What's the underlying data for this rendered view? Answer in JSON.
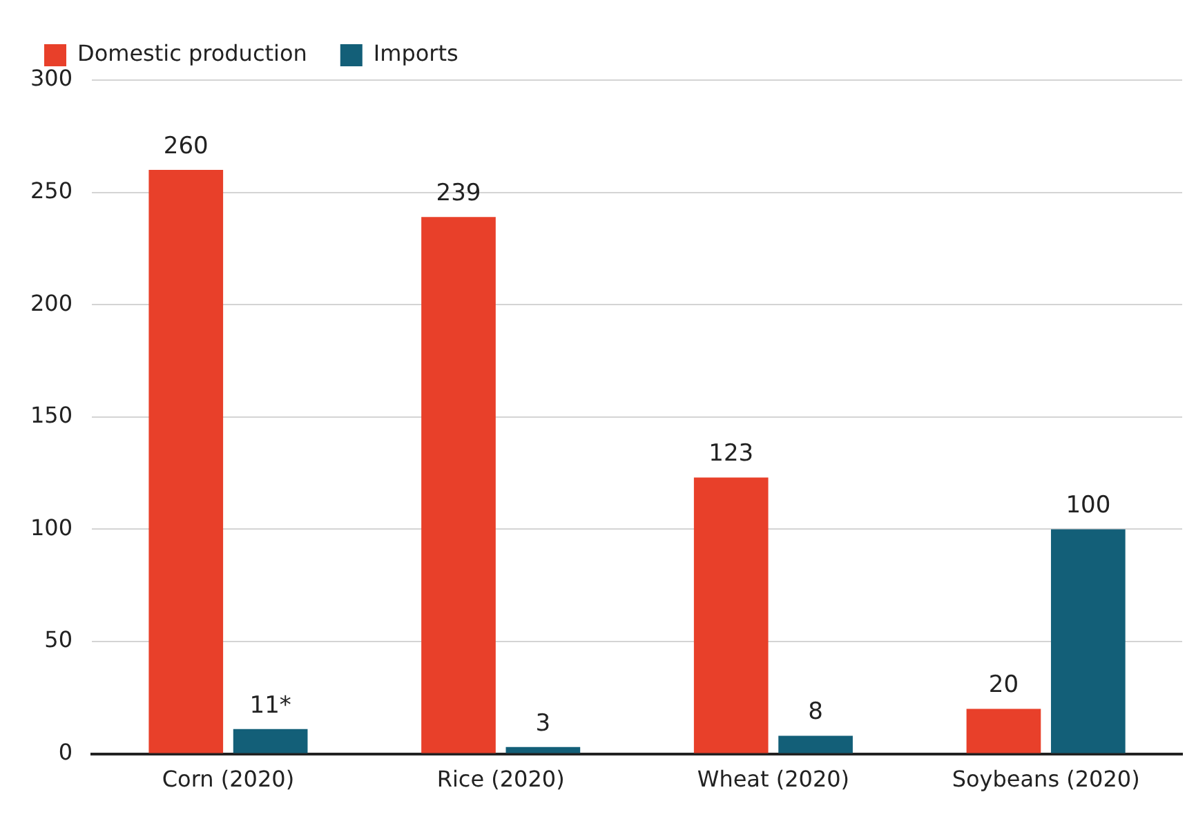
{
  "chart_data": {
    "type": "bar",
    "categories": [
      "Corn (2020)",
      "Rice (2020)",
      "Wheat (2020)",
      "Soybeans (2020)"
    ],
    "series": [
      {
        "name": "Domestic production",
        "color": "#e8402a",
        "values": [
          260,
          239,
          123,
          20
        ],
        "value_labels": [
          "260",
          "239",
          "123",
          "20"
        ]
      },
      {
        "name": "Imports",
        "color": "#135f78",
        "values": [
          11,
          3,
          8,
          100
        ],
        "value_labels": [
          "11*",
          "3",
          "8",
          "100"
        ]
      }
    ],
    "ylim": [
      0,
      300
    ],
    "yticks": [
      0,
      50,
      100,
      150,
      200,
      250,
      300
    ],
    "grid": "y",
    "legend": "top left"
  }
}
